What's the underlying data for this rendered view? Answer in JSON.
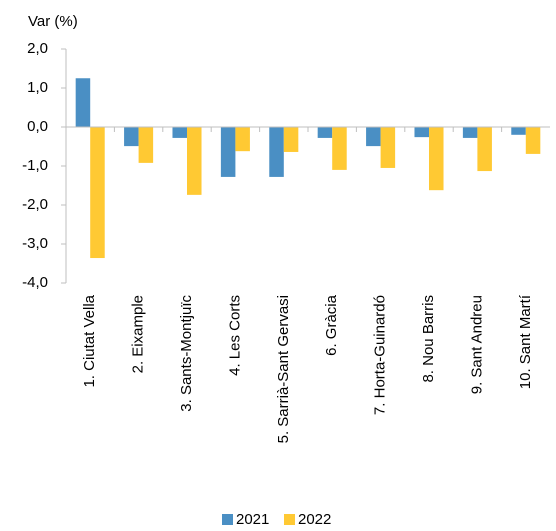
{
  "chart_data": {
    "type": "bar",
    "y_axis_label": "Var (%)",
    "categories": [
      "1. Ciutat Vella",
      "2. Eixample",
      "3. Sants-Montjuïc",
      "4. Les Corts",
      "5. Sarrià-Sant Gervasi",
      "6. Gràcia",
      "7. Horta-Guinardó",
      "8. Nou Barris",
      "9. Sant Andreu",
      "10. Sant Martí"
    ],
    "series": [
      {
        "name": "2021",
        "color": "#4a8fc4",
        "values": [
          1.25,
          -0.49,
          -0.28,
          -1.28,
          -1.28,
          -0.28,
          -0.49,
          -0.26,
          -0.28,
          -0.2
        ]
      },
      {
        "name": "2022",
        "color": "#ffc933",
        "values": [
          -3.36,
          -0.92,
          -1.74,
          -0.62,
          -0.64,
          -1.1,
          -1.05,
          -1.62,
          -1.13,
          -0.69
        ]
      }
    ],
    "ylim": [
      -4,
      2
    ],
    "yticks": [
      {
        "value": -4,
        "label": "-4,0"
      },
      {
        "value": -3,
        "label": "-3,0"
      },
      {
        "value": -2,
        "label": "-2,0"
      },
      {
        "value": -1,
        "label": "-1,0"
      },
      {
        "value": 0,
        "label": "0,0"
      },
      {
        "value": 1,
        "label": "1,0"
      },
      {
        "value": 2,
        "label": "2,0"
      }
    ],
    "legend": "bottom"
  }
}
